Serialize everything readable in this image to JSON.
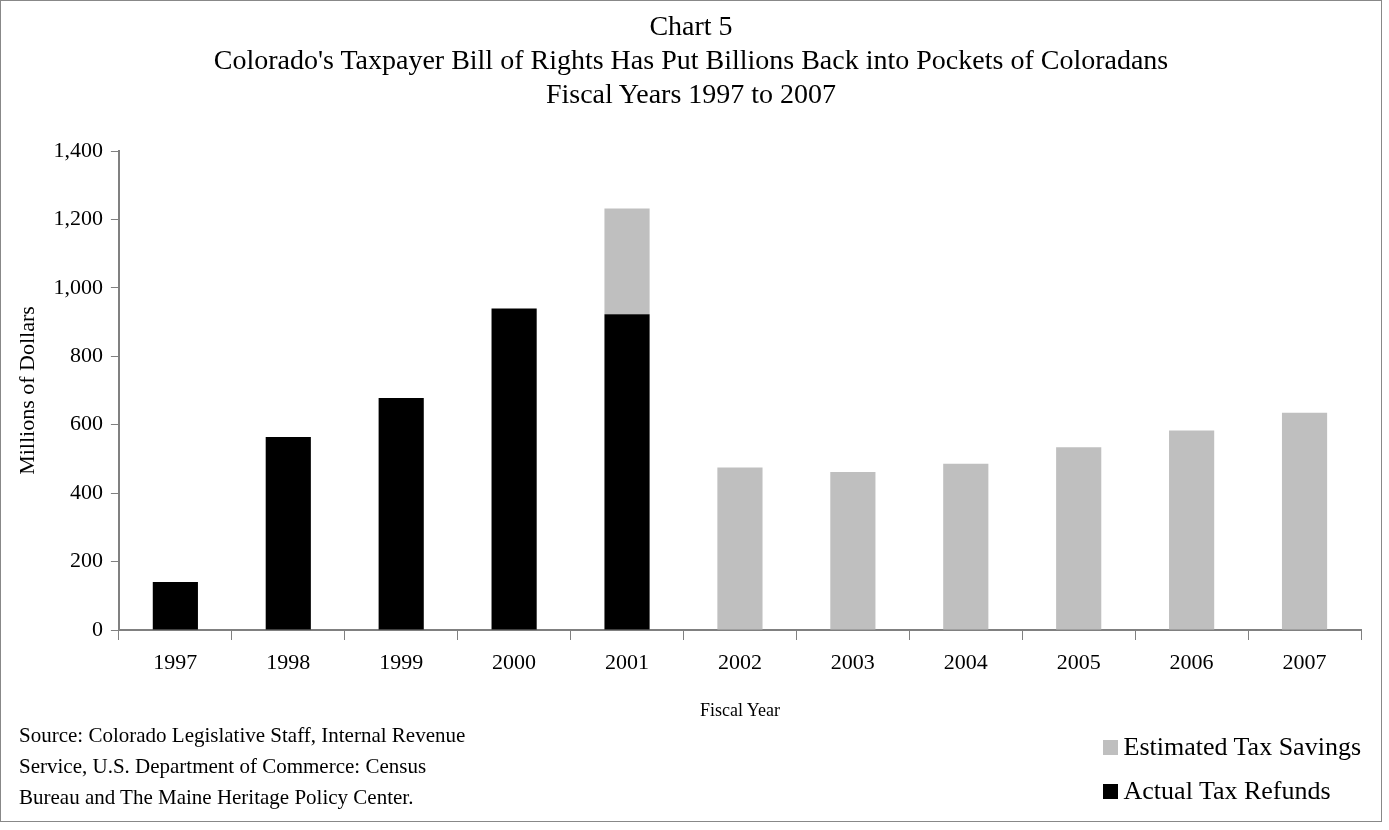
{
  "chart_data": {
    "type": "bar",
    "title": "Chart 5",
    "subtitle": "Colorado's Taxpayer Bill of Rights Has Put Billions Back into Pockets of Coloradans Fiscal Years 1997 to 2007",
    "xlabel": "Fiscal Year",
    "ylabel": "Millions of Dollars",
    "annotations": [
      "Source: Colorado Legislative Staff, Internal Revenue Service, U.S. Department of Commerce: Census Bureau and The Maine Heritage Policy Center."
    ],
    "categories": [
      "1997",
      "1998",
      "1999",
      "2000",
      "2001",
      "2002",
      "2003",
      "2004",
      "2005",
      "2006",
      "2007"
    ],
    "stacked": true,
    "series": [
      {
        "name": "Actual Tax Refunds",
        "color": "#000000",
        "values": [
          140,
          564,
          678,
          940,
          923,
          null,
          null,
          null,
          null,
          null,
          null
        ]
      },
      {
        "name": "Estimated Tax Savings",
        "color": "#bfbfbf",
        "values": [
          null,
          null,
          null,
          null,
          309,
          475,
          462,
          486,
          534,
          583,
          635
        ]
      }
    ],
    "ylim": [
      0,
      1400
    ],
    "yticks": [
      0,
      200,
      400,
      600,
      800,
      {
        "value": 1000,
        "label": "1,000"
      },
      {
        "value": 1200,
        "label": "1,200"
      },
      {
        "value": 1400,
        "label": "1,400"
      }
    ],
    "grid": false,
    "legend": "bottom right"
  }
}
